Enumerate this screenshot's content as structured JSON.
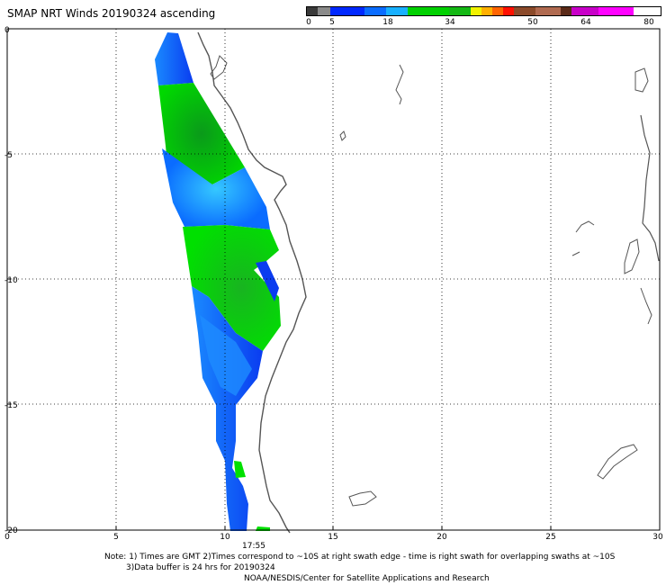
{
  "title": "SMAP NRT Winds 20190324 ascending",
  "colorbar": {
    "labels": [
      "0",
      "5",
      "18",
      "34",
      "50",
      "64",
      "80"
    ],
    "colors": [
      "#3a3a3a",
      "#8a8a8a",
      "#0028ff",
      "#0a6cff",
      "#18b0ff",
      "#00d000",
      "#14b814",
      "#f2f200",
      "#ffb000",
      "#ff6400",
      "#ff1000",
      "#8b4a2a",
      "#b06a50",
      "#5a2a18",
      "#c800c8",
      "#ff00ff"
    ]
  },
  "axes": {
    "x_ticks": [
      "0",
      "5",
      "10",
      "15",
      "20",
      "25",
      "30"
    ],
    "y_ticks": [
      "0",
      "-5",
      "-10",
      "-15",
      "-20"
    ],
    "xlim": [
      0,
      30
    ],
    "ylim": [
      -20,
      0
    ],
    "grid": "dotted"
  },
  "time_label": "17:55",
  "notes": {
    "line1": "Note: 1) Times are GMT 2)Times correspond to ~10S at right swath edge - time is right swath for overlapping swaths at ~10S",
    "line2": "3)Data buffer is 24 hrs for 20190324",
    "line3": "NOAA/NESDIS/Center for Satellite Applications and Research"
  }
}
